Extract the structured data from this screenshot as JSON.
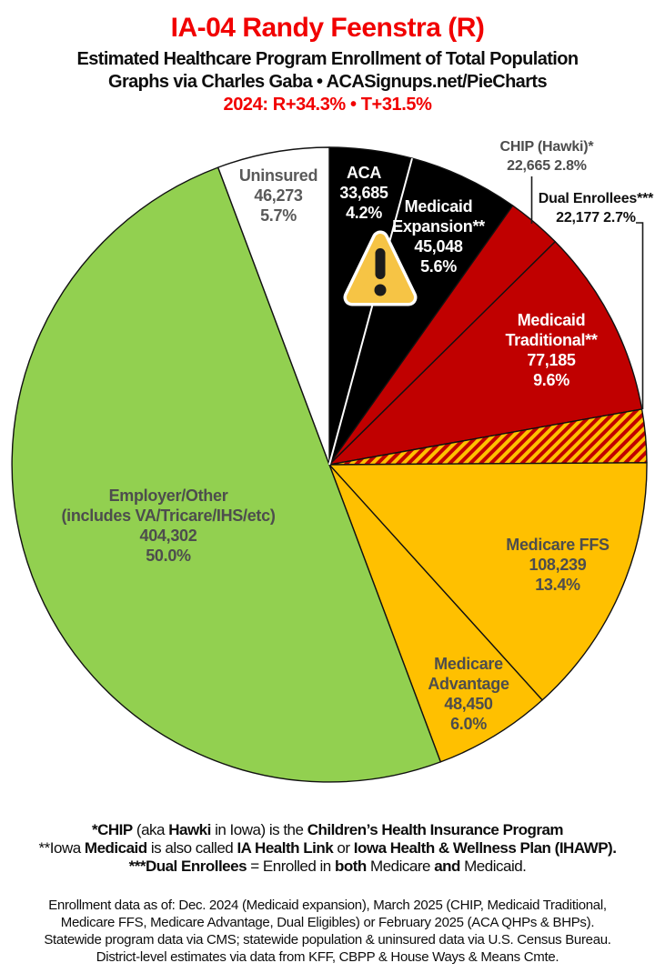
{
  "header": {
    "title": "IA-04 Randy Feenstra (R)",
    "subtitle": "Estimated Healthcare Program Enrollment of Total Population",
    "byline": "Graphs via Charles Gaba  •  ACASignups.net/PieCharts",
    "partisan_lean": "2024: R+34.3%  •  T+31.5%",
    "accent_color": "#F10000"
  },
  "chart_data": {
    "type": "pie",
    "title": "IA-04 Randy Feenstra (R) — Estimated Healthcare Program Enrollment of Total Population",
    "start_angle_deg": 0,
    "direction": "clockwise",
    "legend_position": "labels-on-slices",
    "slices": [
      {
        "id": "aca",
        "label_lines": [
          "ACA"
        ],
        "value": "33,685",
        "pct": "4.2%",
        "pct_num": 4.2,
        "color": "#000000",
        "text_color": "#FFFFFF",
        "hatch": false
      },
      {
        "id": "medicaid-expansion",
        "label_lines": [
          "Medicaid",
          "Expansion**"
        ],
        "value": "45,048",
        "pct": "5.6%",
        "pct_num": 5.6,
        "color": "#000000",
        "text_color": "#FFFFFF",
        "hatch": false
      },
      {
        "id": "chip",
        "label_lines": [
          "CHIP (Hawki)*"
        ],
        "value": "22,665",
        "pct": "2.8%",
        "pct_num": 2.8,
        "color": "#C00000",
        "text_color": "#4D4D4D",
        "hatch": false
      },
      {
        "id": "medicaid-traditional",
        "label_lines": [
          "Medicaid",
          "Traditional**"
        ],
        "value": "77,185",
        "pct": "9.6%",
        "pct_num": 9.6,
        "color": "#C00000",
        "text_color": "#FFFFFF",
        "hatch": false
      },
      {
        "id": "dual-enrollees",
        "label_lines": [
          "Dual Enrollees***"
        ],
        "value": "22,177",
        "pct": "2.7%",
        "pct_num": 2.7,
        "color": "#C00000",
        "hatch_color": "#FFC000",
        "text_color": "#0F0F0F",
        "hatch": true
      },
      {
        "id": "medicare-ffs",
        "label_lines": [
          "Medicare FFS"
        ],
        "value": "108,239",
        "pct": "13.4%",
        "pct_num": 13.4,
        "color": "#FFC000",
        "text_color": "#4D4D4D",
        "hatch": false
      },
      {
        "id": "medicare-advantage",
        "label_lines": [
          "Medicare",
          "Advantage"
        ],
        "value": "48,450",
        "pct": "6.0%",
        "pct_num": 6.0,
        "color": "#FFC000",
        "text_color": "#4D4D4D",
        "hatch": false
      },
      {
        "id": "employer-other",
        "label_lines": [
          "Employer/Other",
          "(includes VA/Tricare/IHS/etc)"
        ],
        "value": "404,302",
        "pct": "50.0%",
        "pct_num": 50.0,
        "color": "#92D050",
        "text_color": "#4D4D4D",
        "hatch": false
      },
      {
        "id": "uninsured",
        "label_lines": [
          "Uninsured"
        ],
        "value": "46,273",
        "pct": "5.7%",
        "pct_num": 5.7,
        "color": "#FFFFFF",
        "text_color": "#595959",
        "hatch": false
      }
    ]
  },
  "icons": {
    "warning_triangle": "warning-triangle-exclamation"
  },
  "footnotes": {
    "lines": [
      {
        "segments": [
          {
            "text": "*CHIP",
            "bold": true
          },
          {
            "text": " (aka ",
            "bold": false
          },
          {
            "text": "Hawki",
            "bold": true
          },
          {
            "text": " in Iowa) is the ",
            "bold": false
          },
          {
            "text": "Children’s Health Insurance Program",
            "bold": true
          }
        ]
      },
      {
        "segments": [
          {
            "text": "**Iowa ",
            "bold": false
          },
          {
            "text": "Medicaid",
            "bold": true
          },
          {
            "text": " is also called ",
            "bold": false
          },
          {
            "text": "IA Health Link",
            "bold": true
          },
          {
            "text": " or ",
            "bold": false
          },
          {
            "text": "Iowa Health & Wellness Plan (IHAWP).",
            "bold": true
          }
        ]
      },
      {
        "segments": [
          {
            "text": "***Dual Enrollees",
            "bold": true
          },
          {
            "text": " = Enrolled in ",
            "bold": false
          },
          {
            "text": "both",
            "bold": true
          },
          {
            "text": " Medicare ",
            "bold": false
          },
          {
            "text": "and",
            "bold": true
          },
          {
            "text": " Medicaid.",
            "bold": false
          }
        ]
      }
    ]
  },
  "sources": {
    "lines": [
      "Enrollment data as of: Dec. 2024 (Medicaid expansion), March 2025 (CHIP, Medicaid Traditional,",
      "Medicare FFS, Medicare Advantage, Dual Eligibles) or February 2025 (ACA QHPs & BHPs).",
      "Statewide program data via CMS; statewide population & uninsured data via U.S. Census Bureau.",
      "District-level estimates via data from KFF, CBPP & House Ways & Means Cmte."
    ]
  }
}
